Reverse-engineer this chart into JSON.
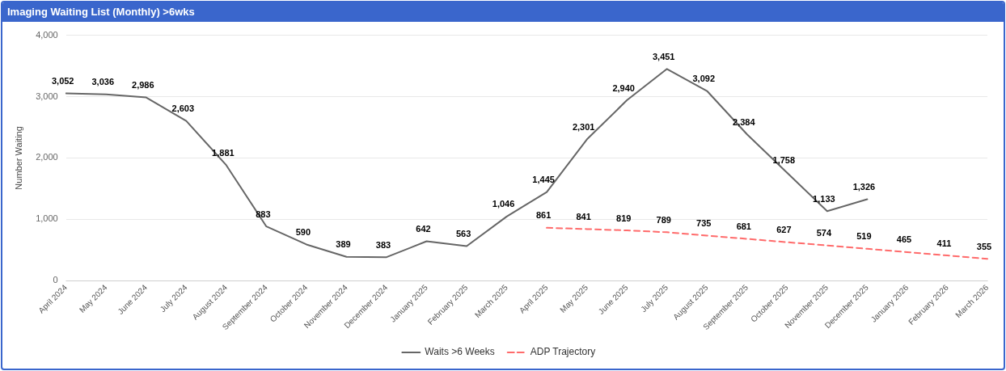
{
  "chart_data": {
    "type": "line",
    "title": "Imaging Waiting List (Monthly) >6wks",
    "ylabel": "Number Waiting",
    "categories": [
      "April 2024",
      "May 2024",
      "June 2024",
      "July 2024",
      "August 2024",
      "September 2024",
      "October 2024",
      "November 2024",
      "December 2024",
      "January 2025",
      "February 2025",
      "March 2025",
      "April 2025",
      "May 2025",
      "June 2025",
      "July 2025",
      "August 2025",
      "September 2025",
      "October 2025",
      "November 2025",
      "December 2025",
      "January 2026",
      "February 2026",
      "March 2026"
    ],
    "series": [
      {
        "name": "Waits >6 Weeks",
        "color": "#666666",
        "line_style": "solid",
        "values": [
          3052,
          3036,
          2986,
          2603,
          1881,
          883,
          590,
          389,
          383,
          642,
          563,
          1046,
          1445,
          2301,
          2940,
          3451,
          3092,
          2384,
          1758,
          1133,
          1326,
          null,
          null,
          null
        ],
        "value_labels": [
          "3,052",
          "3,036",
          "2,986",
          "2,603",
          "1,881",
          "883",
          "590",
          "389",
          "383",
          "642",
          "563",
          "1,046",
          "1,445",
          "2,301",
          "2,940",
          "3,451",
          "3,092",
          "2,384",
          "1,758",
          "1,133",
          "1,326",
          null,
          null,
          null
        ]
      },
      {
        "name": "ADP Trajectory",
        "color": "#ff6b6b",
        "line_style": "dashed",
        "values": [
          null,
          null,
          null,
          null,
          null,
          null,
          null,
          null,
          null,
          null,
          null,
          null,
          861,
          841,
          819,
          789,
          735,
          681,
          627,
          574,
          519,
          465,
          411,
          355
        ],
        "value_labels": [
          null,
          null,
          null,
          null,
          null,
          null,
          null,
          null,
          null,
          null,
          null,
          null,
          "861",
          "841",
          "819",
          "789",
          "735",
          "681",
          "627",
          "574",
          "519",
          "465",
          "411",
          "355"
        ]
      }
    ],
    "ylim": [
      0,
      4000
    ],
    "yticks": [
      {
        "value": 0,
        "label": "0"
      },
      {
        "value": 1000,
        "label": "1,000"
      },
      {
        "value": 2000,
        "label": "2,000"
      },
      {
        "value": 3000,
        "label": "3,000"
      },
      {
        "value": 4000,
        "label": "4,000"
      }
    ],
    "grid": "y",
    "legend": "bottom",
    "marker": "none"
  }
}
